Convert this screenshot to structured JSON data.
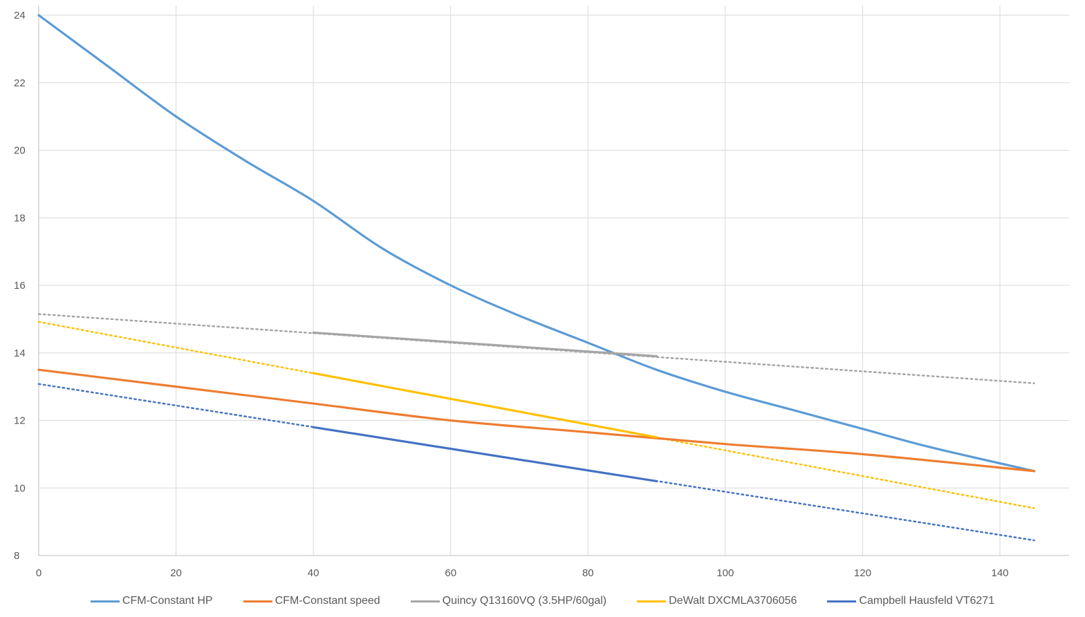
{
  "chart_data": {
    "type": "line",
    "title": "",
    "xlabel": "",
    "ylabel": "",
    "xlim": [
      0,
      146
    ],
    "ylim": [
      8,
      24
    ],
    "x_ticks": [
      0,
      20,
      40,
      60,
      80,
      100,
      120,
      140
    ],
    "y_ticks": [
      8,
      10,
      12,
      14,
      16,
      18,
      20,
      22,
      24
    ],
    "grid": true,
    "legend_position": "bottom",
    "series": [
      {
        "name": "CFM-Constant HP",
        "color": "#5B9BD5",
        "style": "solid",
        "points": [
          [
            0,
            24
          ],
          [
            10,
            22.5
          ],
          [
            20,
            21
          ],
          [
            30,
            19.7
          ],
          [
            40,
            18.5
          ],
          [
            50,
            17.1
          ],
          [
            60,
            16
          ],
          [
            70,
            15.1
          ],
          [
            80,
            14.3
          ],
          [
            90,
            13.5
          ],
          [
            100,
            12.85
          ],
          [
            110,
            12.3
          ],
          [
            120,
            11.75
          ],
          [
            130,
            11.2
          ],
          [
            145,
            10.5
          ]
        ]
      },
      {
        "name": "CFM-Constant speed",
        "color": "#ED7D31",
        "style": "solid",
        "points": [
          [
            0,
            13.5
          ],
          [
            20,
            13.0
          ],
          [
            40,
            12.5
          ],
          [
            60,
            12.0
          ],
          [
            80,
            11.65
          ],
          [
            100,
            11.3
          ],
          [
            120,
            11.0
          ],
          [
            145,
            10.5
          ]
        ]
      },
      {
        "name": "Quincy Q13160VQ (3.5HP/60gal)",
        "color": "#A5A5A5",
        "style": "solid",
        "points": [
          [
            40,
            14.6
          ],
          [
            90,
            13.9
          ]
        ]
      },
      {
        "name": "DeWalt DXCMLA3706056",
        "color": "#FFC000",
        "style": "solid",
        "points": [
          [
            40,
            13.4
          ],
          [
            90,
            11.5
          ]
        ]
      },
      {
        "name": "Campbell Hausfeld VT6271",
        "color": "#4472C4",
        "style": "solid",
        "points": [
          [
            40,
            11.8
          ],
          [
            90,
            10.2
          ]
        ]
      }
    ],
    "trendlines": [
      {
        "color": "#A5A5A5",
        "style": "dotted",
        "points": [
          [
            0,
            15.15
          ],
          [
            145,
            13.1
          ]
        ]
      },
      {
        "color": "#FFC000",
        "style": "dotted",
        "points": [
          [
            0,
            14.92
          ],
          [
            145,
            9.4
          ]
        ]
      },
      {
        "color": "#4472C4",
        "style": "dotted",
        "points": [
          [
            0,
            13.08
          ],
          [
            145,
            8.45
          ]
        ]
      }
    ]
  }
}
